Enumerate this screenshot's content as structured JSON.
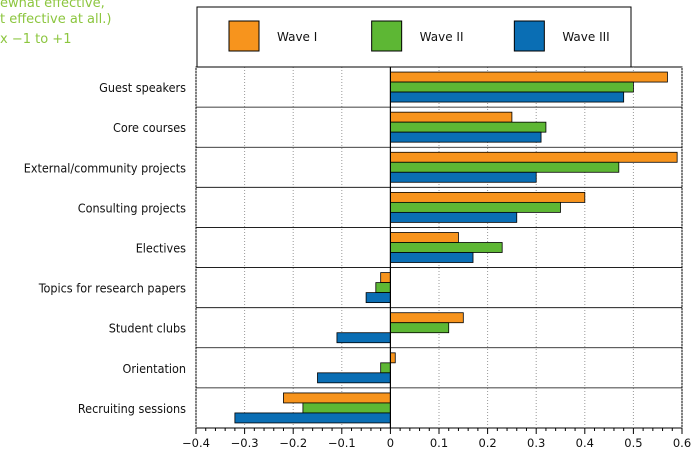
{
  "header_note": [
    "ewhat effective,",
    "t effective at all.)",
    "x −1 to +1"
  ],
  "chart_data": {
    "type": "bar",
    "orientation": "horizontal",
    "categories": [
      "Guest speakers",
      "Core courses",
      "External/community projects",
      "Consulting projects",
      "Electives",
      "Topics for research papers",
      "Student clubs",
      "Orientation",
      "Recruiting sessions"
    ],
    "series": [
      {
        "name": "Wave I",
        "color": "#f7941d",
        "values": [
          0.57,
          0.25,
          0.59,
          0.4,
          0.14,
          -0.02,
          0.15,
          0.01,
          -0.22
        ]
      },
      {
        "name": "Wave II",
        "color": "#5db734",
        "values": [
          0.5,
          0.32,
          0.47,
          0.35,
          0.23,
          -0.03,
          0.12,
          -0.02,
          -0.18
        ]
      },
      {
        "name": "Wave III",
        "color": "#0a6eb4",
        "values": [
          0.48,
          0.31,
          0.3,
          0.26,
          0.17,
          -0.05,
          -0.11,
          -0.15,
          -0.32
        ]
      }
    ],
    "xlim": [
      -0.4,
      0.6
    ],
    "xticks": [
      -0.4,
      -0.3,
      -0.2,
      -0.1,
      0,
      0.1,
      0.2,
      0.3,
      0.4,
      0.5,
      0.6
    ],
    "xtick_labels": [
      "−0.4",
      "−0.3",
      "−0.2",
      "−0.1",
      "0",
      "0.1",
      "0.2",
      "0.3",
      "0.4",
      "0.5",
      "0.6"
    ],
    "grid": "vertical dotted",
    "legend_position": "top-center"
  }
}
